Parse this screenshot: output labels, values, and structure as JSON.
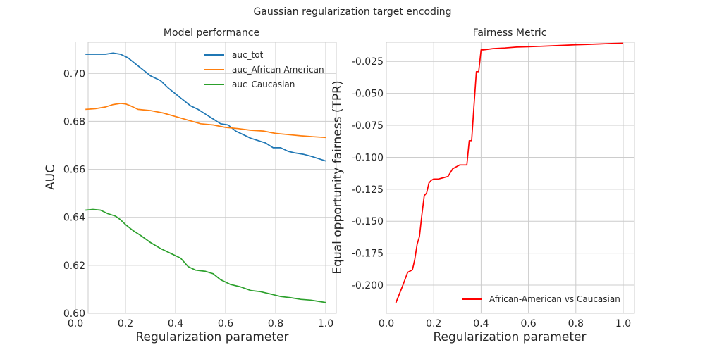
{
  "figure": {
    "title": "Gaussian regularization target encoding"
  },
  "chart_data": [
    {
      "type": "line",
      "title": "Model performance",
      "xlabel": "Regularization parameter",
      "ylabel": "AUC",
      "xlim": [
        0.0,
        1.0
      ],
      "ylim": [
        0.6,
        0.713
      ],
      "xticks": [
        "0.0",
        "0.2",
        "0.4",
        "0.6",
        "0.8",
        "1.0"
      ],
      "yticks": [
        "0.60",
        "0.62",
        "0.64",
        "0.66",
        "0.68",
        "0.70"
      ],
      "grid": true,
      "legend_position": "top-right",
      "series": [
        {
          "name": "auc_tot",
          "color": "#1f77b4",
          "x": [
            0.04,
            0.08,
            0.12,
            0.15,
            0.18,
            0.21,
            0.24,
            0.27,
            0.3,
            0.34,
            0.37,
            0.4,
            0.43,
            0.46,
            0.49,
            0.52,
            0.55,
            0.58,
            0.61,
            0.64,
            0.67,
            0.7,
            0.73,
            0.76,
            0.79,
            0.82,
            0.85,
            0.88,
            0.91,
            0.94,
            0.97,
            1.0
          ],
          "y": [
            0.708,
            0.708,
            0.708,
            0.7085,
            0.708,
            0.7065,
            0.704,
            0.7015,
            0.699,
            0.697,
            0.694,
            0.6915,
            0.689,
            0.6865,
            0.685,
            0.683,
            0.681,
            0.679,
            0.6785,
            0.676,
            0.6745,
            0.673,
            0.672,
            0.671,
            0.669,
            0.669,
            0.6675,
            0.6668,
            0.6663,
            0.6655,
            0.6645,
            0.6635
          ]
        },
        {
          "name": "auc_African-American",
          "color": "#ff7f0e",
          "x": [
            0.04,
            0.08,
            0.12,
            0.15,
            0.18,
            0.2,
            0.22,
            0.25,
            0.3,
            0.35,
            0.4,
            0.45,
            0.5,
            0.55,
            0.6,
            0.65,
            0.7,
            0.75,
            0.8,
            0.85,
            0.9,
            0.95,
            1.0
          ],
          "y": [
            0.685,
            0.6853,
            0.686,
            0.687,
            0.6875,
            0.6873,
            0.6865,
            0.685,
            0.6845,
            0.6835,
            0.682,
            0.6805,
            0.679,
            0.6785,
            0.6775,
            0.677,
            0.6763,
            0.676,
            0.675,
            0.6745,
            0.674,
            0.6736,
            0.6733
          ]
        },
        {
          "name": "auc_Caucasian",
          "color": "#2ca02c",
          "x": [
            0.04,
            0.07,
            0.1,
            0.13,
            0.16,
            0.18,
            0.2,
            0.23,
            0.26,
            0.3,
            0.34,
            0.38,
            0.42,
            0.45,
            0.48,
            0.52,
            0.55,
            0.58,
            0.62,
            0.66,
            0.7,
            0.74,
            0.78,
            0.82,
            0.86,
            0.9,
            0.94,
            0.97,
            1.0
          ],
          "y": [
            0.643,
            0.6433,
            0.643,
            0.6415,
            0.6405,
            0.639,
            0.637,
            0.6345,
            0.6325,
            0.6295,
            0.627,
            0.625,
            0.623,
            0.6195,
            0.618,
            0.6175,
            0.6165,
            0.614,
            0.612,
            0.611,
            0.6095,
            0.609,
            0.608,
            0.607,
            0.6065,
            0.6058,
            0.6055,
            0.605,
            0.6045
          ]
        }
      ]
    },
    {
      "type": "line",
      "title": "Fairness Metric",
      "xlabel": "Regularization parameter",
      "ylabel": "Equal opportunity fairness (TPR)",
      "xlim": [
        0.0,
        1.0
      ],
      "ylim": [
        -0.222,
        -0.01
      ],
      "xticks": [
        "0.0",
        "0.2",
        "0.4",
        "0.6",
        "0.8",
        "1.0"
      ],
      "yticks": [
        "-0.200",
        "-0.175",
        "-0.150",
        "-0.125",
        "-0.100",
        "-0.075",
        "-0.050",
        "-0.025"
      ],
      "grid": true,
      "legend_position": "lower-right",
      "series": [
        {
          "name": "African-American vs Caucasian",
          "color": "#ff0000",
          "x": [
            0.04,
            0.07,
            0.09,
            0.11,
            0.12,
            0.13,
            0.14,
            0.15,
            0.16,
            0.17,
            0.18,
            0.19,
            0.2,
            0.22,
            0.24,
            0.26,
            0.28,
            0.31,
            0.34,
            0.35,
            0.36,
            0.37,
            0.38,
            0.39,
            0.4,
            0.41,
            0.45,
            0.5,
            0.55,
            0.6,
            0.65,
            0.7,
            0.75,
            0.8,
            0.85,
            0.9,
            0.95,
            1.0
          ],
          "y": [
            -0.214,
            -0.2,
            -0.19,
            -0.188,
            -0.18,
            -0.168,
            -0.162,
            -0.145,
            -0.13,
            -0.128,
            -0.12,
            -0.118,
            -0.117,
            -0.117,
            -0.116,
            -0.115,
            -0.109,
            -0.106,
            -0.106,
            -0.087,
            -0.087,
            -0.06,
            -0.033,
            -0.033,
            -0.016,
            -0.016,
            -0.015,
            -0.0145,
            -0.0138,
            -0.0135,
            -0.0132,
            -0.0128,
            -0.0124,
            -0.012,
            -0.0117,
            -0.0114,
            -0.011,
            -0.0108
          ]
        }
      ]
    }
  ]
}
